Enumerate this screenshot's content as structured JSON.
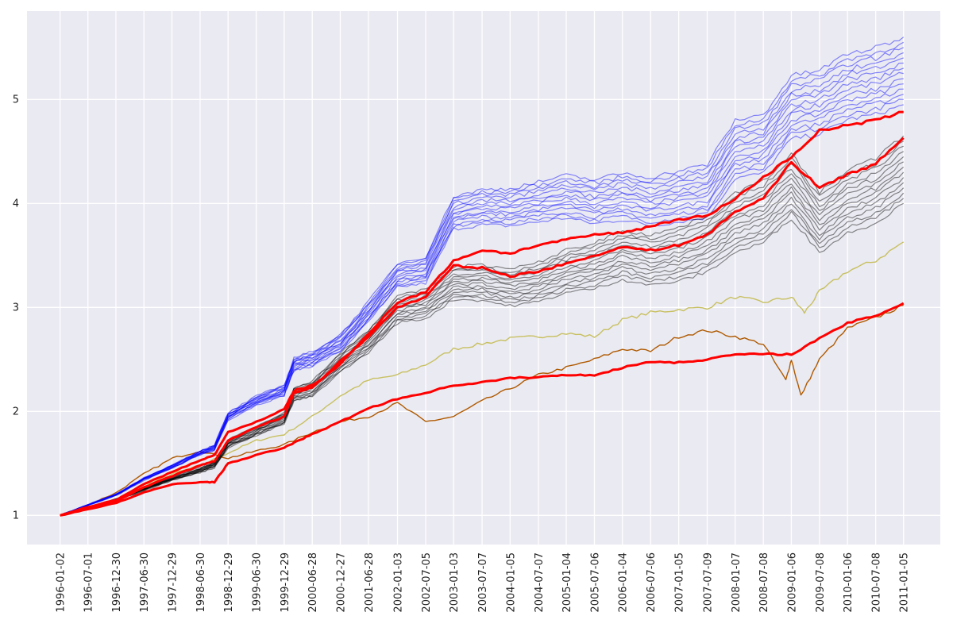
{
  "chart_data": {
    "type": "line",
    "title": "",
    "xlabel": "",
    "ylabel": "",
    "grid": true,
    "legend": "none",
    "background": "#eaeaf2",
    "gridline_color": "#ffffff",
    "xlim": [
      "1995-06-01",
      "2011-09-01"
    ],
    "ylim": [
      0.72,
      5.85
    ],
    "x_tick_labels": [
      "1996-01-02",
      "1996-07-01",
      "1996-12-30",
      "1997-06-30",
      "1997-12-29",
      "1998-06-30",
      "1998-12-29",
      "1999-06-30",
      "1999-12-29",
      "2000-06-28",
      "2000-12-27",
      "2001-06-28",
      "2002-01-03",
      "2002-07-05",
      "2003-01-03",
      "2003-07-07",
      "2004-01-05",
      "2004-07-07",
      "2005-01-04",
      "2005-07-06",
      "2006-01-04",
      "2006-07-06",
      "2007-01-05",
      "2007-07-09",
      "2008-01-07",
      "2008-07-08",
      "2009-01-06",
      "2009-07-08",
      "2010-01-06",
      "2010-07-08",
      "2011-01-05"
    ],
    "y_ticks": [
      1,
      2,
      3,
      4,
      5
    ],
    "y_tick_labels": [
      "1",
      "2",
      "3",
      "4",
      "5"
    ],
    "series_groups": [
      {
        "color": "#0000ff",
        "opacity": 0.45,
        "width": 1.2,
        "count": 14,
        "spread_end": [
          4.95,
          5.6
        ],
        "path": [
          [
            "1996-01-02",
            1.0
          ],
          [
            "1996-07-01",
            1.1
          ],
          [
            "1997-01-02",
            1.2
          ],
          [
            "1997-07-01",
            1.35
          ],
          [
            "1998-01-02",
            1.47
          ],
          [
            "1998-07-01",
            1.6
          ],
          [
            "1998-10-01",
            1.65
          ],
          [
            "1998-12-29",
            1.95
          ],
          [
            "1999-06-30",
            2.1
          ],
          [
            "1999-12-29",
            2.2
          ],
          [
            "2000-03-01",
            2.45
          ],
          [
            "2000-06-28",
            2.5
          ],
          [
            "2000-12-27",
            2.65
          ],
          [
            "2001-06-28",
            2.95
          ],
          [
            "2002-01-03",
            3.3
          ],
          [
            "2002-07-05",
            3.35
          ],
          [
            "2003-01-03",
            3.9
          ],
          [
            "2003-07-07",
            3.95
          ],
          [
            "2004-01-05",
            3.95
          ],
          [
            "2004-07-07",
            4.0
          ],
          [
            "2005-01-04",
            4.05
          ],
          [
            "2005-07-06",
            4.0
          ],
          [
            "2006-01-04",
            4.05
          ],
          [
            "2006-07-06",
            4.0
          ],
          [
            "2007-01-05",
            4.05
          ],
          [
            "2007-07-09",
            4.1
          ],
          [
            "2008-01-07",
            4.5
          ],
          [
            "2008-07-08",
            4.55
          ],
          [
            "2009-01-06",
            4.9
          ],
          [
            "2009-07-08",
            4.95
          ],
          [
            "2010-01-06",
            5.1
          ],
          [
            "2010-07-08",
            5.15
          ],
          [
            "2011-01-05",
            5.25
          ]
        ]
      },
      {
        "color": "#000000",
        "opacity": 0.45,
        "width": 1.2,
        "count": 14,
        "spread_end": [
          4.0,
          4.65
        ],
        "path": [
          [
            "1996-01-02",
            1.0
          ],
          [
            "1996-07-01",
            1.07
          ],
          [
            "1997-01-02",
            1.15
          ],
          [
            "1997-07-01",
            1.25
          ],
          [
            "1998-01-02",
            1.35
          ],
          [
            "1998-07-01",
            1.43
          ],
          [
            "1998-10-01",
            1.48
          ],
          [
            "1998-12-29",
            1.68
          ],
          [
            "1999-06-30",
            1.8
          ],
          [
            "1999-12-29",
            1.92
          ],
          [
            "2000-03-01",
            2.15
          ],
          [
            "2000-06-28",
            2.2
          ],
          [
            "2000-12-27",
            2.45
          ],
          [
            "2001-06-28",
            2.65
          ],
          [
            "2002-01-03",
            2.95
          ],
          [
            "2002-07-05",
            3.0
          ],
          [
            "2003-01-03",
            3.2
          ],
          [
            "2003-07-07",
            3.2
          ],
          [
            "2004-01-05",
            3.15
          ],
          [
            "2004-07-07",
            3.2
          ],
          [
            "2005-01-04",
            3.3
          ],
          [
            "2005-07-06",
            3.35
          ],
          [
            "2006-01-04",
            3.45
          ],
          [
            "2006-07-06",
            3.4
          ],
          [
            "2007-01-05",
            3.45
          ],
          [
            "2007-07-09",
            3.55
          ],
          [
            "2008-01-07",
            3.75
          ],
          [
            "2008-07-08",
            3.85
          ],
          [
            "2009-01-06",
            4.1
          ],
          [
            "2009-07-08",
            3.75
          ],
          [
            "2010-01-06",
            3.95
          ],
          [
            "2010-07-08",
            4.05
          ],
          [
            "2011-01-05",
            4.25
          ]
        ]
      }
    ],
    "series": [
      {
        "color": "#ff0000",
        "width": 3,
        "values": [
          [
            "1996-01-02",
            1.0
          ],
          [
            "1996-07-01",
            1.08
          ],
          [
            "1997-01-02",
            1.15
          ],
          [
            "1997-07-01",
            1.3
          ],
          [
            "1998-01-02",
            1.42
          ],
          [
            "1998-07-01",
            1.53
          ],
          [
            "1998-10-01",
            1.58
          ],
          [
            "1998-12-29",
            1.8
          ],
          [
            "1999-06-30",
            1.9
          ],
          [
            "1999-12-29",
            2.02
          ],
          [
            "2000-03-01",
            2.2
          ],
          [
            "2000-06-28",
            2.25
          ],
          [
            "2000-12-27",
            2.45
          ],
          [
            "2001-06-28",
            2.75
          ],
          [
            "2002-01-03",
            3.05
          ],
          [
            "2002-07-05",
            3.15
          ],
          [
            "2003-01-03",
            3.45
          ],
          [
            "2003-07-07",
            3.55
          ],
          [
            "2004-01-05",
            3.52
          ],
          [
            "2004-07-07",
            3.6
          ],
          [
            "2005-01-04",
            3.65
          ],
          [
            "2005-07-06",
            3.7
          ],
          [
            "2006-01-04",
            3.72
          ],
          [
            "2006-07-06",
            3.78
          ],
          [
            "2007-01-05",
            3.85
          ],
          [
            "2007-07-09",
            3.88
          ],
          [
            "2008-01-07",
            4.05
          ],
          [
            "2008-07-08",
            4.25
          ],
          [
            "2009-01-06",
            4.45
          ],
          [
            "2009-07-08",
            4.7
          ],
          [
            "2010-01-06",
            4.75
          ],
          [
            "2010-07-08",
            4.8
          ],
          [
            "2011-01-05",
            4.88
          ]
        ]
      },
      {
        "color": "#ff0000",
        "width": 3,
        "values": [
          [
            "1996-01-02",
            1.0
          ],
          [
            "1996-07-01",
            1.07
          ],
          [
            "1997-01-02",
            1.14
          ],
          [
            "1997-07-01",
            1.27
          ],
          [
            "1998-01-02",
            1.38
          ],
          [
            "1998-07-01",
            1.48
          ],
          [
            "1998-10-01",
            1.52
          ],
          [
            "1998-12-29",
            1.72
          ],
          [
            "1999-06-30",
            1.85
          ],
          [
            "1999-12-29",
            1.95
          ],
          [
            "2000-03-01",
            2.18
          ],
          [
            "2000-06-28",
            2.23
          ],
          [
            "2000-12-27",
            2.48
          ],
          [
            "2001-06-28",
            2.72
          ],
          [
            "2002-01-03",
            3.0
          ],
          [
            "2002-07-05",
            3.1
          ],
          [
            "2003-01-03",
            3.4
          ],
          [
            "2003-07-07",
            3.38
          ],
          [
            "2004-01-05",
            3.3
          ],
          [
            "2004-07-07",
            3.35
          ],
          [
            "2005-01-04",
            3.42
          ],
          [
            "2005-07-06",
            3.5
          ],
          [
            "2006-01-04",
            3.58
          ],
          [
            "2006-07-06",
            3.55
          ],
          [
            "2007-01-05",
            3.6
          ],
          [
            "2007-07-09",
            3.7
          ],
          [
            "2008-01-07",
            3.92
          ],
          [
            "2008-07-08",
            4.05
          ],
          [
            "2009-01-06",
            4.4
          ],
          [
            "2009-07-08",
            4.15
          ],
          [
            "2010-01-06",
            4.28
          ],
          [
            "2010-07-08",
            4.38
          ],
          [
            "2011-01-05",
            4.63
          ]
        ]
      },
      {
        "color": "#ff0000",
        "width": 3,
        "values": [
          [
            "1996-01-02",
            1.0
          ],
          [
            "1996-07-01",
            1.06
          ],
          [
            "1997-01-02",
            1.12
          ],
          [
            "1997-07-01",
            1.22
          ],
          [
            "1998-01-02",
            1.3
          ],
          [
            "1998-07-01",
            1.32
          ],
          [
            "1998-10-01",
            1.32
          ],
          [
            "1998-12-29",
            1.5
          ],
          [
            "1999-06-30",
            1.58
          ],
          [
            "1999-12-29",
            1.65
          ],
          [
            "2000-03-01",
            1.7
          ],
          [
            "2000-06-28",
            1.78
          ],
          [
            "2000-12-27",
            1.9
          ],
          [
            "2001-06-28",
            2.03
          ],
          [
            "2002-01-03",
            2.12
          ],
          [
            "2002-07-05",
            2.18
          ],
          [
            "2003-01-03",
            2.25
          ],
          [
            "2003-07-07",
            2.28
          ],
          [
            "2004-01-05",
            2.32
          ],
          [
            "2004-07-07",
            2.33
          ],
          [
            "2005-01-04",
            2.35
          ],
          [
            "2005-07-06",
            2.35
          ],
          [
            "2006-01-04",
            2.42
          ],
          [
            "2006-07-06",
            2.48
          ],
          [
            "2007-01-05",
            2.47
          ],
          [
            "2007-07-09",
            2.5
          ],
          [
            "2008-01-07",
            2.55
          ],
          [
            "2008-07-08",
            2.55
          ],
          [
            "2009-01-06",
            2.55
          ],
          [
            "2009-07-08",
            2.7
          ],
          [
            "2010-01-06",
            2.85
          ],
          [
            "2010-07-08",
            2.92
          ],
          [
            "2011-01-05",
            3.04
          ]
        ]
      },
      {
        "color": "#c8c060",
        "width": 1.4,
        "values": [
          [
            "1996-01-02",
            1.0
          ],
          [
            "1996-07-01",
            1.08
          ],
          [
            "1997-01-02",
            1.15
          ],
          [
            "1997-07-01",
            1.28
          ],
          [
            "1998-01-02",
            1.4
          ],
          [
            "1998-07-01",
            1.48
          ],
          [
            "1998-12-29",
            1.6
          ],
          [
            "1999-06-30",
            1.72
          ],
          [
            "1999-12-29",
            1.78
          ],
          [
            "2000-06-28",
            1.95
          ],
          [
            "2000-12-27",
            2.15
          ],
          [
            "2001-06-28",
            2.3
          ],
          [
            "2002-01-03",
            2.35
          ],
          [
            "2002-07-05",
            2.45
          ],
          [
            "2003-01-03",
            2.6
          ],
          [
            "2003-07-07",
            2.65
          ],
          [
            "2004-01-05",
            2.7
          ],
          [
            "2004-07-07",
            2.72
          ],
          [
            "2005-01-04",
            2.75
          ],
          [
            "2005-07-06",
            2.72
          ],
          [
            "2006-01-04",
            2.88
          ],
          [
            "2006-07-06",
            2.95
          ],
          [
            "2007-01-05",
            2.98
          ],
          [
            "2007-07-09",
            3.0
          ],
          [
            "2008-01-07",
            3.1
          ],
          [
            "2008-07-08",
            3.05
          ],
          [
            "2009-01-06",
            3.1
          ],
          [
            "2009-04-01",
            2.95
          ],
          [
            "2009-07-08",
            3.15
          ],
          [
            "2010-01-06",
            3.35
          ],
          [
            "2010-07-08",
            3.45
          ],
          [
            "2011-01-05",
            3.63
          ]
        ]
      },
      {
        "color": "#b05a00",
        "width": 1.4,
        "values": [
          [
            "1996-01-02",
            1.0
          ],
          [
            "1996-07-01",
            1.1
          ],
          [
            "1997-01-02",
            1.22
          ],
          [
            "1997-07-01",
            1.4
          ],
          [
            "1998-01-02",
            1.55
          ],
          [
            "1998-07-01",
            1.62
          ],
          [
            "1998-12-29",
            1.55
          ],
          [
            "1999-06-30",
            1.62
          ],
          [
            "1999-12-29",
            1.68
          ],
          [
            "2000-06-28",
            1.8
          ],
          [
            "2000-12-27",
            1.9
          ],
          [
            "2001-06-28",
            1.95
          ],
          [
            "2002-01-03",
            2.08
          ],
          [
            "2002-07-05",
            1.9
          ],
          [
            "2003-01-03",
            1.95
          ],
          [
            "2003-07-07",
            2.1
          ],
          [
            "2004-01-05",
            2.22
          ],
          [
            "2004-07-07",
            2.35
          ],
          [
            "2005-01-04",
            2.42
          ],
          [
            "2005-07-06",
            2.5
          ],
          [
            "2006-01-04",
            2.6
          ],
          [
            "2006-07-06",
            2.58
          ],
          [
            "2007-01-05",
            2.72
          ],
          [
            "2007-07-09",
            2.78
          ],
          [
            "2008-01-07",
            2.72
          ],
          [
            "2008-07-08",
            2.65
          ],
          [
            "2008-12-01",
            2.3
          ],
          [
            "2009-01-06",
            2.5
          ],
          [
            "2009-03-09",
            2.15
          ],
          [
            "2009-07-08",
            2.5
          ],
          [
            "2010-01-06",
            2.8
          ],
          [
            "2010-07-08",
            2.9
          ],
          [
            "2011-01-05",
            3.02
          ]
        ]
      }
    ]
  }
}
